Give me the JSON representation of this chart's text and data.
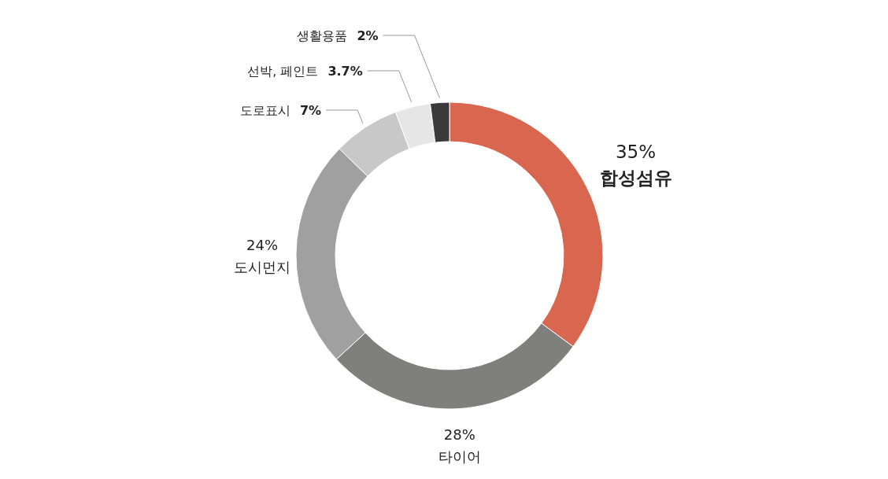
{
  "chart_data": {
    "type": "donut",
    "categories": [
      "합성섬유",
      "타이어",
      "도시먼지",
      "도로표시",
      "선박, 페인트",
      "생활용품"
    ],
    "values": [
      35,
      28,
      24,
      7,
      3.7,
      2
    ],
    "colors": [
      "#d9664f",
      "#7f7f7e",
      "#a0a0a0",
      "#c8c8c8",
      "#e6e6e6",
      "#3a3a3a"
    ],
    "value_labels": [
      "35%",
      "28%",
      "24%",
      "7%",
      "3.7%",
      "2%"
    ]
  }
}
